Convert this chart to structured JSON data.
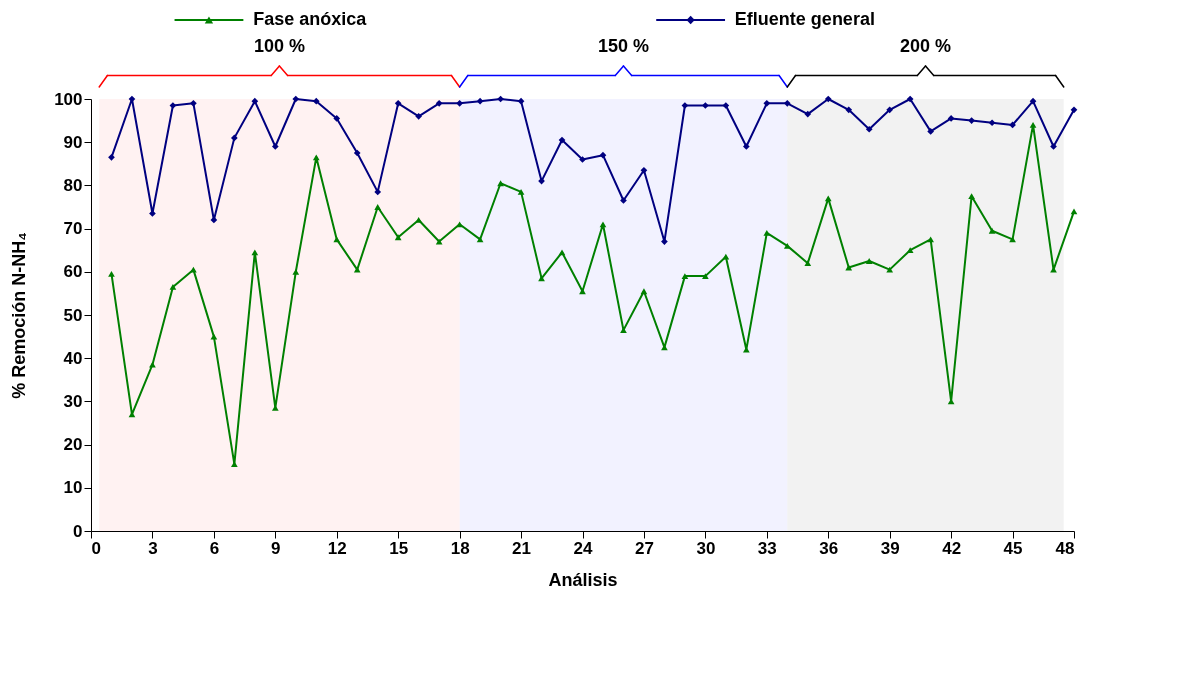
{
  "chart_data": {
    "type": "line",
    "xlabel": "Análisis",
    "ylabel": "% Remoción N-NH₄",
    "x": [
      1,
      2,
      3,
      4,
      5,
      6,
      7,
      8,
      9,
      10,
      11,
      12,
      13,
      14,
      15,
      16,
      17,
      18,
      19,
      20,
      21,
      22,
      23,
      24,
      25,
      26,
      27,
      28,
      29,
      30,
      31,
      32,
      33,
      34,
      35,
      36,
      37,
      38,
      39,
      40,
      41,
      42,
      43,
      44,
      45,
      46,
      47,
      48
    ],
    "series": [
      {
        "name": "Fase anóxica",
        "color": "#008000",
        "marker": "triangle",
        "values": [
          59.5,
          27,
          38.5,
          56.5,
          60.5,
          45,
          15.5,
          64.5,
          28.5,
          60,
          86.5,
          67.5,
          60.5,
          75,
          68,
          72,
          67,
          71,
          67.5,
          80.5,
          78.5,
          58.5,
          64.5,
          55.5,
          71,
          46.5,
          55.5,
          42.5,
          59,
          59,
          63.5,
          42,
          69,
          66,
          62,
          77,
          61,
          62.5,
          60.5,
          65,
          67.5,
          30,
          77.5,
          69.5,
          67.5,
          94,
          60.5,
          74
        ]
      },
      {
        "name": "Efluente general",
        "color": "#000080",
        "marker": "diamond",
        "values": [
          86.5,
          100,
          73.5,
          98.5,
          99,
          72,
          91,
          99.5,
          89,
          100,
          99.5,
          95.5,
          87.5,
          78.5,
          99,
          96,
          99,
          99,
          99.5,
          100,
          99.5,
          81,
          90.5,
          86,
          87,
          76.5,
          83.5,
          67,
          98.5,
          98.5,
          98.5,
          89,
          99,
          99,
          96.5,
          100,
          97.5,
          93,
          97.5,
          100,
          92.5,
          95.5,
          95,
          94.5,
          94,
          99.5,
          89,
          97.5
        ]
      }
    ],
    "bands": [
      {
        "axis": "x",
        "from": 0.4,
        "to": 18,
        "label": "100 %",
        "color": "#ff0000"
      },
      {
        "axis": "x",
        "from": 18,
        "to": 34,
        "label": "150 %",
        "color": "#0000ff"
      },
      {
        "axis": "x",
        "from": 34,
        "to": 47.5,
        "label": "200 %",
        "color": "#000000"
      }
    ],
    "xlim": [
      0,
      48
    ],
    "xticks": [
      0,
      3,
      6,
      9,
      12,
      15,
      18,
      21,
      24,
      27,
      30,
      33,
      36,
      39,
      42,
      45,
      48
    ],
    "ylim": [
      0,
      100
    ],
    "yticks": [
      0,
      10,
      20,
      30,
      40,
      50,
      60,
      70,
      80,
      90,
      100
    ],
    "grid": false,
    "legend": "top",
    "line_style": "solid"
  }
}
